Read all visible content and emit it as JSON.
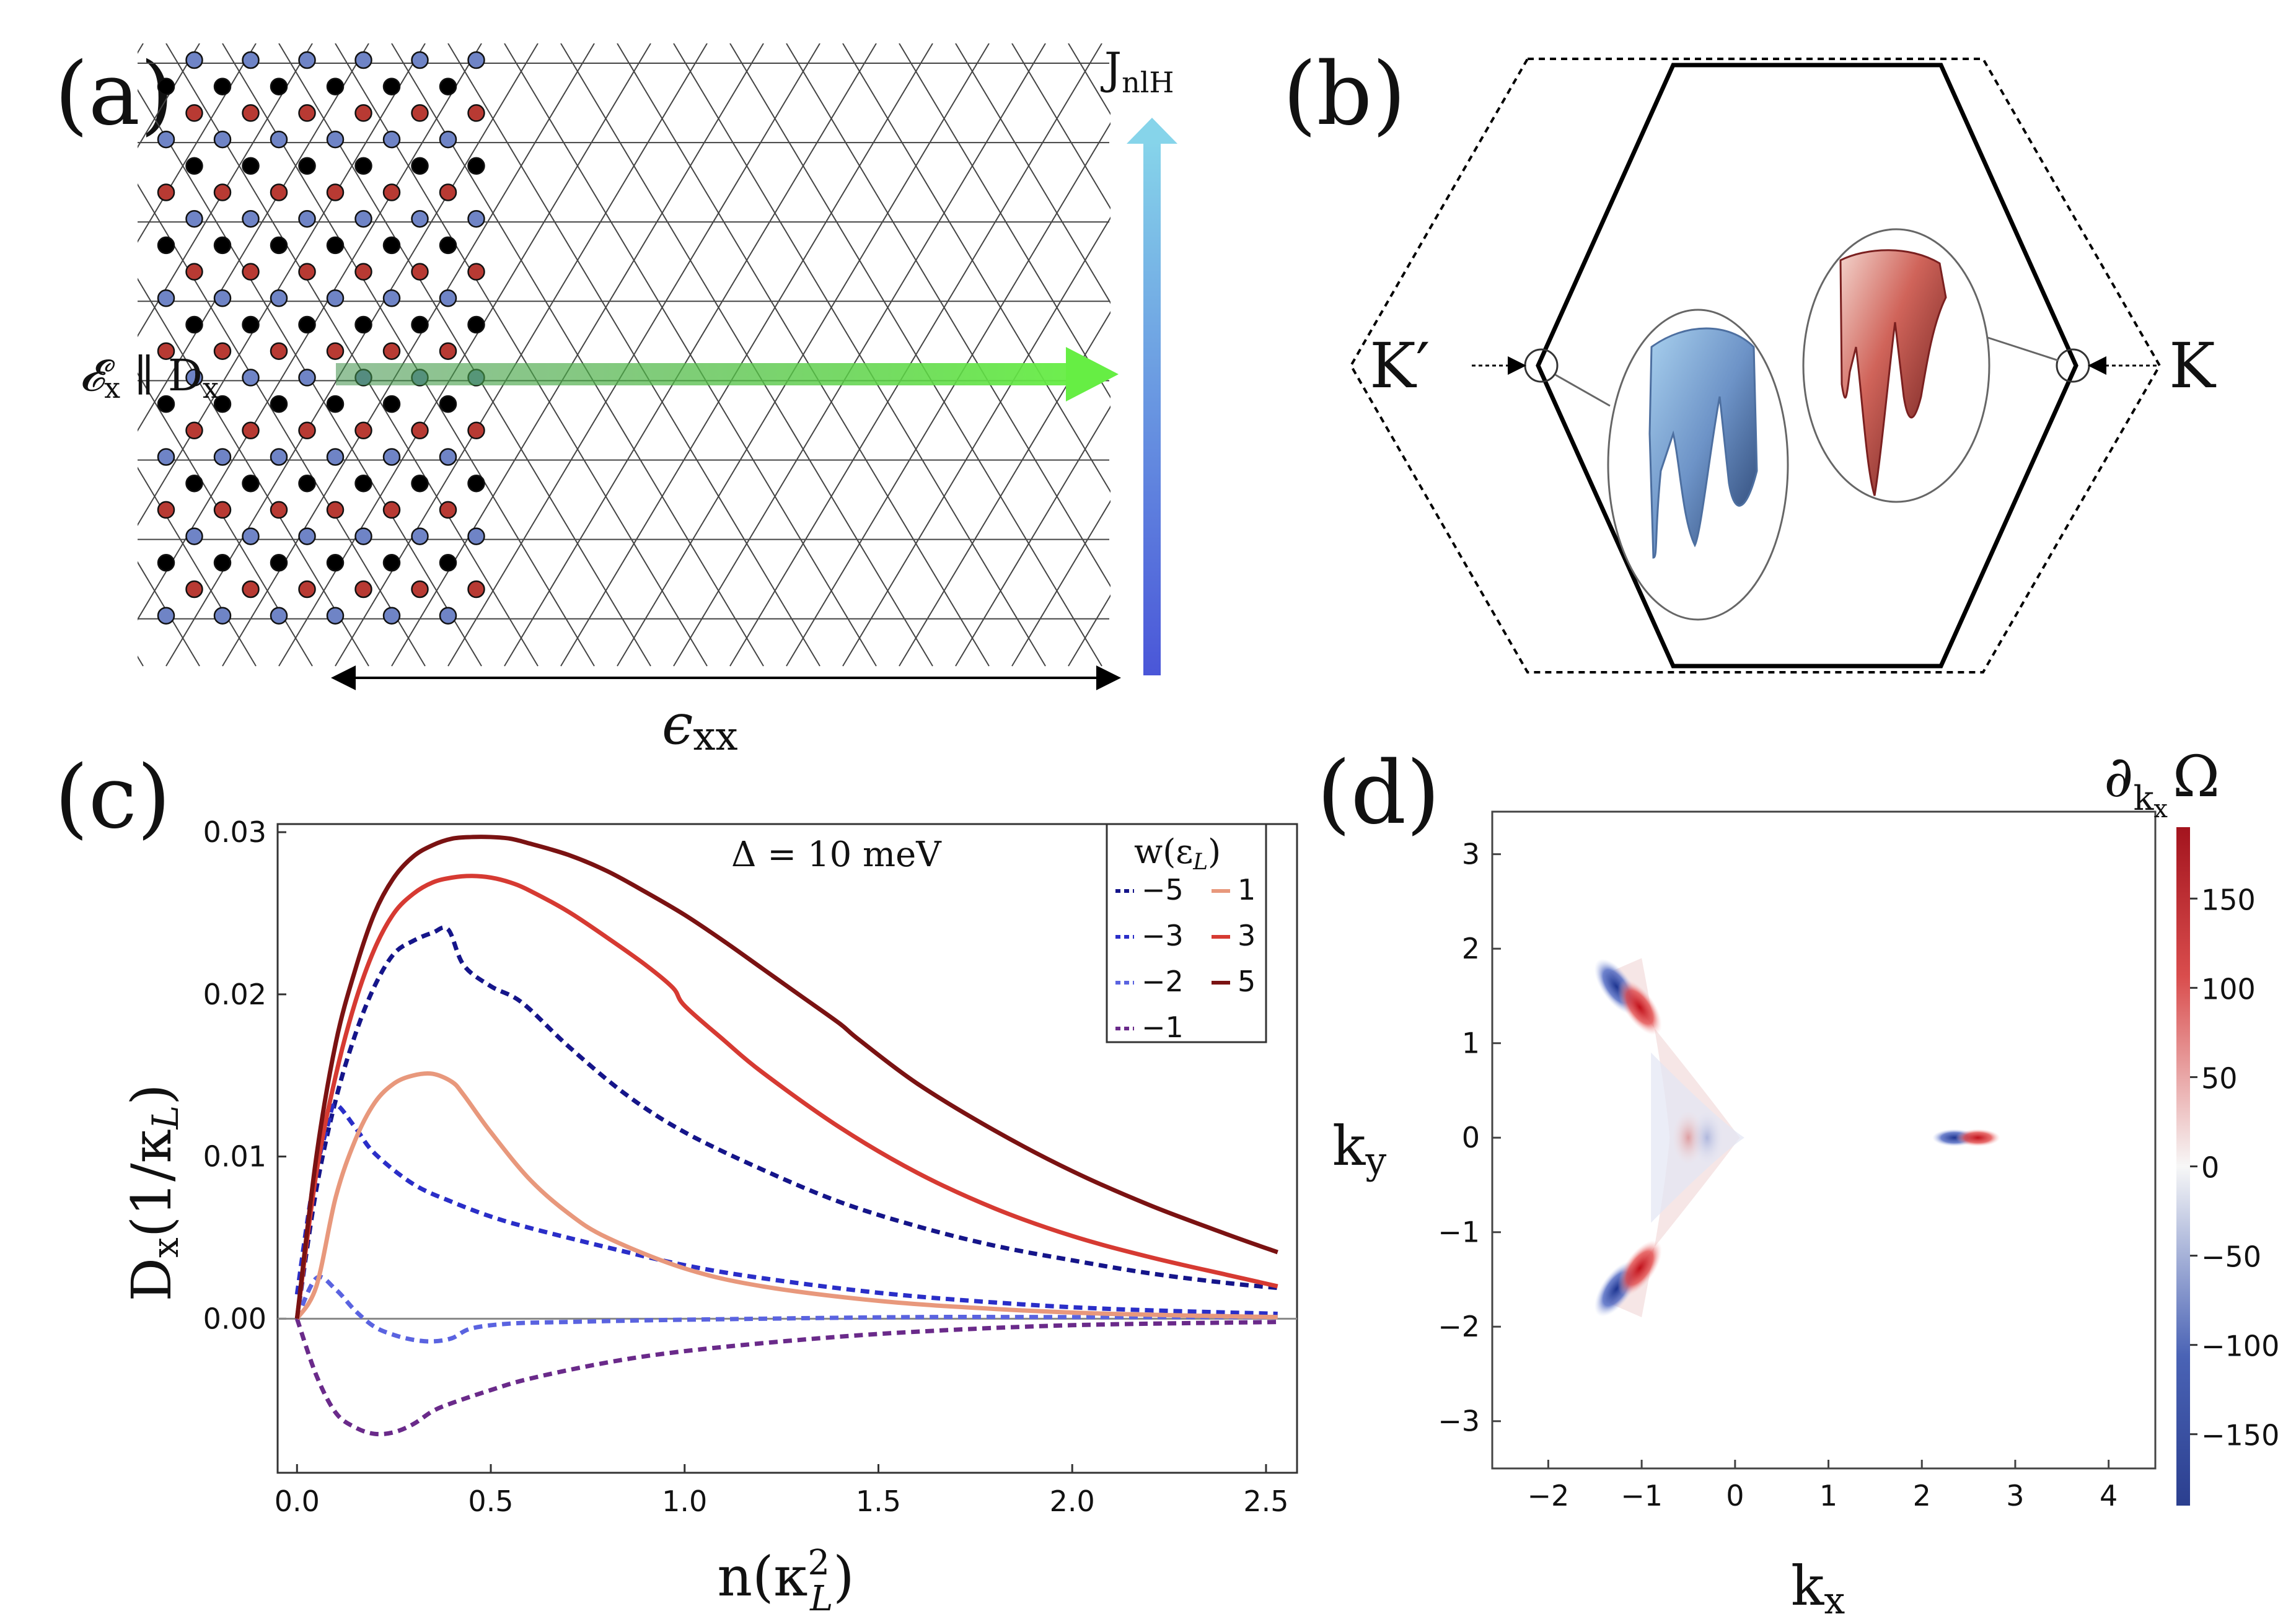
{
  "panels": {
    "a": {
      "label": "(a)",
      "current_label": "J",
      "current_sub": "nlH",
      "field_label": "𝓔",
      "field_sub": "x",
      "field_mid": " ∥ D",
      "field_sub2": "x",
      "strain_label": "ϵ",
      "strain_sub": "xx",
      "colors": {
        "black": "#000000",
        "red": "#b83a33",
        "blue": "#6f84c6",
        "green": "#5ccc44",
        "arrow_top": "#7fd0e8",
        "arrow_bottom": "#4a5cd8"
      }
    },
    "b": {
      "label": "(b)",
      "k_label": "K",
      "kprime_label": "K′",
      "colors": {
        "blue_valley": "#7fa6d6",
        "red_valley": "#b74a44"
      }
    },
    "c": {
      "label": "(c)",
      "annotation": "Δ = 10 meV",
      "legend_title": "w(ε",
      "legend_title_sub": "L",
      "legend_title_end": ")",
      "ylabel_main": "D",
      "ylabel_sub": "x",
      "ylabel_rest": "(1/κ",
      "ylabel_sub2": "L",
      "ylabel_end": ")",
      "xlabel_main": "n(κ",
      "xlabel_sup": "2",
      "xlabel_sub": "L",
      "xlabel_end": ")"
    },
    "d": {
      "label": "(d)",
      "colorbar_title_main": "∂",
      "colorbar_title_sub": "k",
      "colorbar_title_subsub": "x",
      "colorbar_title_end": "Ω",
      "xlabel_main": "k",
      "xlabel_sub": "x",
      "ylabel_main": "k",
      "ylabel_sub": "y"
    }
  },
  "chart_data": [
    {
      "type": "line",
      "panel": "c",
      "title": "Δ = 10 meV",
      "xlabel": "n(κ_L^2)",
      "ylabel": "D_x(1/κ_L)",
      "xlim": [
        -0.05,
        2.58
      ],
      "ylim": [
        -0.0095,
        0.0305
      ],
      "xticks": [
        "0.0",
        "0.5",
        "1.0",
        "1.5",
        "2.0",
        "2.5"
      ],
      "xtick_values": [
        0,
        0.5,
        1.0,
        1.5,
        2.0,
        2.5
      ],
      "yticks": [
        "0.00",
        "0.01",
        "0.02",
        "0.03"
      ],
      "ytick_values": [
        0,
        0.01,
        0.02,
        0.03
      ],
      "legend_title": "w(ε_L)",
      "series": [
        {
          "name": "-5",
          "label": "−5",
          "color": "#15158a",
          "dashed": true,
          "x": [
            0.0,
            0.05,
            0.1,
            0.15,
            0.2,
            0.25,
            0.3,
            0.35,
            0.39,
            0.43,
            0.5,
            0.58,
            0.7,
            0.85,
            1.0,
            1.2,
            1.4,
            1.6,
            1.8,
            2.0,
            2.2,
            2.4,
            2.53
          ],
          "y": [
            0.0,
            0.008,
            0.0135,
            0.0175,
            0.0205,
            0.0225,
            0.0233,
            0.0238,
            0.024,
            0.0218,
            0.0205,
            0.0195,
            0.0168,
            0.0138,
            0.0115,
            0.0092,
            0.0072,
            0.0057,
            0.0045,
            0.0036,
            0.0028,
            0.0022,
            0.0019
          ]
        },
        {
          "name": "-3",
          "label": "−3",
          "color": "#2a2ec8",
          "dashed": true,
          "x": [
            0.0,
            0.04,
            0.08,
            0.1,
            0.15,
            0.2,
            0.3,
            0.4,
            0.5,
            0.6,
            0.8,
            1.0,
            1.2,
            1.5,
            1.8,
            2.1,
            2.53
          ],
          "y": [
            0.0015,
            0.008,
            0.012,
            0.0132,
            0.0118,
            0.0102,
            0.0083,
            0.0072,
            0.0063,
            0.0056,
            0.0044,
            0.0033,
            0.0025,
            0.0016,
            0.001,
            0.0006,
            0.0003
          ]
        },
        {
          "name": "-2",
          "label": "−2",
          "color": "#5a63e0",
          "dashed": true,
          "x": [
            0.0,
            0.05,
            0.1,
            0.15,
            0.2,
            0.25,
            0.3,
            0.35,
            0.4,
            0.45,
            0.55,
            0.7,
            0.9,
            1.2,
            1.6,
            2.0,
            2.53
          ],
          "y": [
            0.0,
            0.0025,
            0.0018,
            0.0005,
            -0.0005,
            -0.001,
            -0.0013,
            -0.0014,
            -0.0012,
            -0.0006,
            -0.0003,
            -0.0002,
            -0.0001,
            0.0,
            0.0001,
            0.0001,
            0.0001
          ]
        },
        {
          "name": "-1",
          "label": "−1",
          "color": "#6a2a8a",
          "dashed": true,
          "x": [
            0.0,
            0.05,
            0.1,
            0.15,
            0.2,
            0.25,
            0.3,
            0.35,
            0.4,
            0.5,
            0.6,
            0.8,
            1.0,
            1.3,
            1.6,
            2.0,
            2.53
          ],
          "y": [
            0.0,
            -0.0035,
            -0.0058,
            -0.0067,
            -0.0071,
            -0.007,
            -0.0065,
            -0.0057,
            -0.0052,
            -0.0044,
            -0.0037,
            -0.0027,
            -0.002,
            -0.0013,
            -0.0008,
            -0.0004,
            -0.0002
          ]
        },
        {
          "name": "1",
          "label": "1",
          "color": "#e8987c",
          "dashed": false,
          "x": [
            0.0,
            0.05,
            0.1,
            0.15,
            0.2,
            0.25,
            0.3,
            0.35,
            0.4,
            0.43,
            0.5,
            0.6,
            0.7,
            0.8,
            1.0,
            1.2,
            1.5,
            1.8,
            2.1,
            2.53
          ],
          "y": [
            0.0,
            0.002,
            0.0075,
            0.011,
            0.0133,
            0.0145,
            0.015,
            0.0151,
            0.0146,
            0.0138,
            0.0115,
            0.0086,
            0.0065,
            0.005,
            0.0031,
            0.002,
            0.0011,
            0.0006,
            0.0003,
            0.0001
          ]
        },
        {
          "name": "3",
          "label": "3",
          "color": "#d63a32",
          "dashed": false,
          "x": [
            0.0,
            0.05,
            0.1,
            0.15,
            0.2,
            0.25,
            0.3,
            0.35,
            0.4,
            0.45,
            0.5,
            0.55,
            0.6,
            0.7,
            0.8,
            0.9,
            0.97,
            1.0,
            1.1,
            1.2,
            1.4,
            1.6,
            1.8,
            2.0,
            2.2,
            2.4,
            2.53
          ],
          "y": [
            0.0,
            0.009,
            0.015,
            0.0195,
            0.0228,
            0.025,
            0.0262,
            0.0269,
            0.0272,
            0.0273,
            0.0272,
            0.0269,
            0.0264,
            0.0251,
            0.0235,
            0.0218,
            0.0204,
            0.0193,
            0.0172,
            0.0152,
            0.0118,
            0.009,
            0.0068,
            0.0051,
            0.0038,
            0.0027,
            0.002
          ]
        },
        {
          "name": "5",
          "label": "5",
          "color": "#7a1212",
          "dashed": false,
          "x": [
            0.0,
            0.05,
            0.1,
            0.15,
            0.2,
            0.25,
            0.3,
            0.35,
            0.4,
            0.45,
            0.5,
            0.55,
            0.6,
            0.7,
            0.8,
            0.9,
            1.0,
            1.1,
            1.2,
            1.3,
            1.4,
            1.45,
            1.6,
            1.8,
            2.0,
            2.2,
            2.4,
            2.53
          ],
          "y": [
            0.0,
            0.01,
            0.017,
            0.0215,
            0.025,
            0.0272,
            0.0285,
            0.0292,
            0.0296,
            0.0297,
            0.0297,
            0.0296,
            0.0293,
            0.0286,
            0.0276,
            0.0263,
            0.0249,
            0.0233,
            0.0216,
            0.0199,
            0.0182,
            0.0172,
            0.0145,
            0.0116,
            0.0091,
            0.007,
            0.0052,
            0.0041
          ]
        }
      ]
    },
    {
      "type": "heatmap",
      "panel": "d",
      "xlabel": "k_x",
      "ylabel": "k_y",
      "xlim": [
        -2.6,
        4.5
      ],
      "ylim": [
        -3.5,
        3.45
      ],
      "xticks": [
        "−2",
        "−1",
        "0",
        "1",
        "2",
        "3",
        "4"
      ],
      "xtick_values": [
        -2,
        -1,
        0,
        1,
        2,
        3,
        4
      ],
      "yticks": [
        "−3",
        "−2",
        "−1",
        "0",
        "1",
        "2",
        "3"
      ],
      "ytick_values": [
        -3,
        -2,
        -1,
        0,
        1,
        2,
        3
      ],
      "colorbar": {
        "label": "∂_{k_x} Ω",
        "range": [
          -190,
          190
        ],
        "ticks": [
          "−150",
          "−100",
          "−50",
          "0",
          "50",
          "100",
          "150"
        ],
        "tick_values": [
          -150,
          -100,
          -50,
          0,
          50,
          100,
          150
        ]
      },
      "features": [
        {
          "kx": -1.27,
          "ky": 1.6,
          "value": -160
        },
        {
          "kx": -1.02,
          "ky": 1.38,
          "value": 170
        },
        {
          "kx": -1.27,
          "ky": -1.6,
          "value": -160
        },
        {
          "kx": -1.02,
          "ky": -1.38,
          "value": 170
        },
        {
          "kx": -0.5,
          "ky": 0.0,
          "value": 40
        },
        {
          "kx": -0.3,
          "ky": 0.0,
          "value": -30
        },
        {
          "kx": 2.35,
          "ky": 0.0,
          "value": -170
        },
        {
          "kx": 2.6,
          "ky": 0.0,
          "value": 175
        }
      ]
    }
  ]
}
